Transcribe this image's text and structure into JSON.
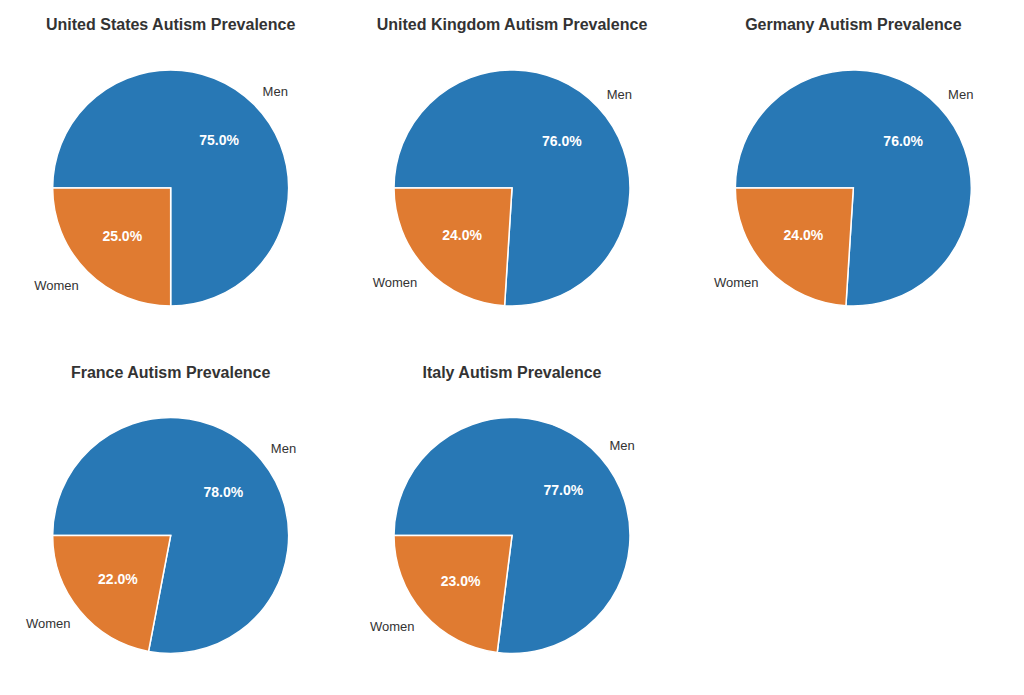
{
  "chart_data": [
    {
      "type": "pie",
      "title": "United States Autism Prevalence",
      "categories": [
        "Men",
        "Women"
      ],
      "values": [
        75.0,
        25.0
      ],
      "value_labels": [
        "75.0%",
        "25.0%"
      ],
      "colors": [
        "#2878b5",
        "#e07b31"
      ],
      "data_labels": true
    },
    {
      "type": "pie",
      "title": "United Kingdom Autism Prevalence",
      "categories": [
        "Men",
        "Women"
      ],
      "values": [
        76.0,
        24.0
      ],
      "value_labels": [
        "76.0%",
        "24.0%"
      ],
      "colors": [
        "#2878b5",
        "#e07b31"
      ],
      "data_labels": true
    },
    {
      "type": "pie",
      "title": "Germany Autism Prevalence",
      "categories": [
        "Men",
        "Women"
      ],
      "values": [
        76.0,
        24.0
      ],
      "value_labels": [
        "76.0%",
        "24.0%"
      ],
      "colors": [
        "#2878b5",
        "#e07b31"
      ],
      "data_labels": true
    },
    {
      "type": "pie",
      "title": "France Autism Prevalence",
      "categories": [
        "Men",
        "Women"
      ],
      "values": [
        78.0,
        22.0
      ],
      "value_labels": [
        "78.0%",
        "22.0%"
      ],
      "colors": [
        "#2878b5",
        "#e07b31"
      ],
      "data_labels": true
    },
    {
      "type": "pie",
      "title": "Italy Autism Prevalence",
      "categories": [
        "Men",
        "Women"
      ],
      "values": [
        77.0,
        23.0
      ],
      "value_labels": [
        "77.0%",
        "23.0%"
      ],
      "colors": [
        "#2878b5",
        "#e07b31"
      ],
      "data_labels": true
    }
  ]
}
